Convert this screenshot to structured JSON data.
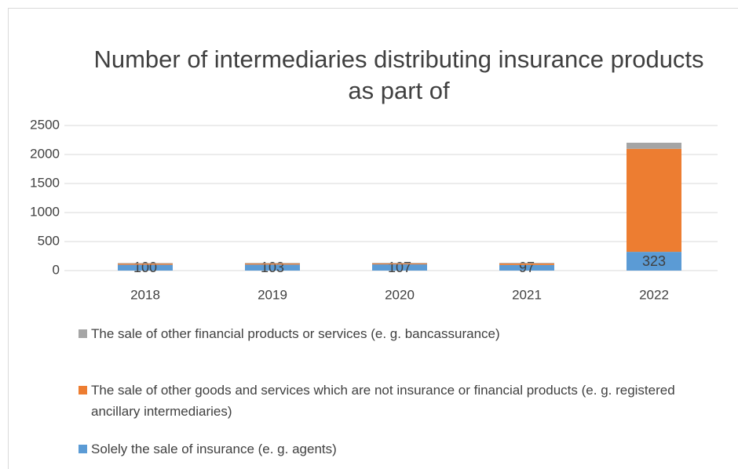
{
  "chart_data": {
    "type": "stacked_bar",
    "title": "Number of intermediaries distributing insurance products as part of",
    "categories": [
      "2018",
      "2019",
      "2020",
      "2021",
      "2022"
    ],
    "series": [
      {
        "name": "Solely the sale of insurance (e. g. agents)",
        "color": "#5b9bd5",
        "values": [
          100,
          103,
          107,
          97,
          323
        ],
        "show_labels": true
      },
      {
        "name": "The sale of other goods and services which are not insurance or financial products (e. g. registered ancillary intermediaries)",
        "color": "#ed7d31",
        "values": [
          20,
          18,
          15,
          25,
          1775
        ],
        "show_labels": false
      },
      {
        "name": "The sale of other financial products or services (e. g. bancassurance)",
        "color": "#a5a5a5",
        "values": [
          10,
          10,
          10,
          10,
          105
        ],
        "show_labels": false
      }
    ],
    "ylim": [
      0,
      2500
    ],
    "yticks": [
      0,
      500,
      1000,
      1500,
      2000,
      2500
    ],
    "grid": true,
    "legend": "bottom"
  }
}
